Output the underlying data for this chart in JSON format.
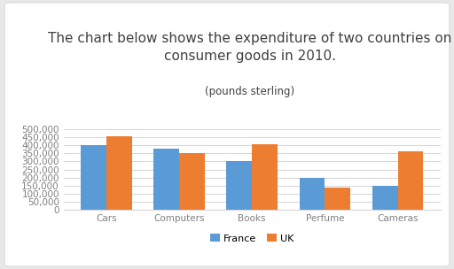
{
  "title_line1": "The chart below shows the expenditure of two countries on",
  "title_line2": "consumer goods in 2010.",
  "subtitle": "(pounds sterling)",
  "categories": [
    "Cars",
    "Computers",
    "Books",
    "Perfume",
    "Cameras"
  ],
  "france": [
    400000,
    380000,
    300000,
    200000,
    150000
  ],
  "uk": [
    455000,
    350000,
    408000,
    140000,
    360000
  ],
  "france_color": "#5b9bd5",
  "uk_color": "#ed7d31",
  "ylim": [
    0,
    500000
  ],
  "yticks": [
    0,
    50000,
    100000,
    150000,
    200000,
    250000,
    300000,
    350000,
    400000,
    450000,
    500000
  ],
  "legend_labels": [
    "France",
    "UK"
  ],
  "outer_bg_color": "#e8e8e8",
  "card_bg_color": "#ffffff",
  "title_fontsize": 11,
  "subtitle_fontsize": 8.5,
  "tick_fontsize": 7.5,
  "legend_fontsize": 8,
  "bar_width": 0.35,
  "grid_color": "#d4d4d4",
  "title_color": "#404040",
  "tick_color": "#808080"
}
